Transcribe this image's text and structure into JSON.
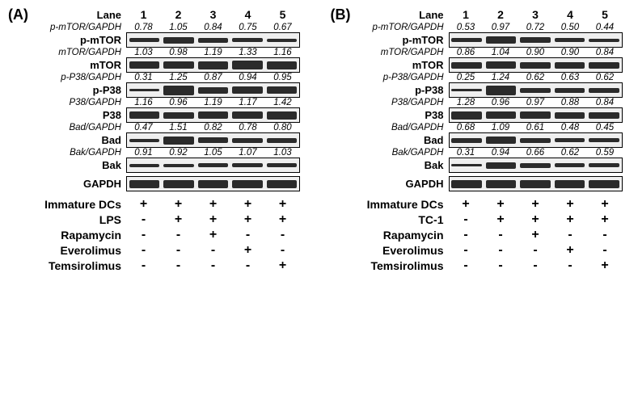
{
  "panels": {
    "A": {
      "letter": "(A)",
      "lane_header": "Lane",
      "lanes": [
        "1",
        "2",
        "3",
        "4",
        "5"
      ],
      "band_box_bg": "#efefef",
      "band_color": "#2b2b2b",
      "ratio_color": "#000000",
      "blocks": [
        {
          "ratio_label": "p-mTOR/GAPDH",
          "band_label": "p-mTOR",
          "values": [
            "0.78",
            "1.05",
            "0.84",
            "0.75",
            "0.67"
          ],
          "band_heights": [
            5,
            8,
            6,
            5,
            4
          ]
        },
        {
          "ratio_label": "mTOR/GAPDH",
          "band_label": "mTOR",
          "values": [
            "1.03",
            "0.98",
            "1.19",
            "1.33",
            "1.16"
          ],
          "band_heights": [
            9,
            9,
            10,
            11,
            10
          ]
        },
        {
          "ratio_label": "p-P38/GAPDH",
          "band_label": "p-P38",
          "values": [
            "0.31",
            "1.25",
            "0.87",
            "0.94",
            "0.95"
          ],
          "band_heights": [
            3,
            12,
            8,
            9,
            9
          ]
        },
        {
          "ratio_label": "P38/GAPDH",
          "band_label": "P38",
          "values": [
            "1.16",
            "0.96",
            "1.19",
            "1.17",
            "1.42"
          ],
          "band_heights": [
            9,
            8,
            9,
            9,
            10
          ]
        },
        {
          "ratio_label": "Bad/GAPDH",
          "band_label": "Bad",
          "values": [
            "0.47",
            "1.51",
            "0.82",
            "0.78",
            "0.80"
          ],
          "band_heights": [
            4,
            10,
            7,
            6,
            6
          ]
        },
        {
          "ratio_label": "Bak/GAPDH",
          "band_label": "Bak",
          "values": [
            "0.91",
            "0.92",
            "1.05",
            "1.07",
            "1.03"
          ],
          "band_heights": [
            4,
            4,
            5,
            5,
            5
          ]
        }
      ],
      "gapdh": {
        "label": "GAPDH",
        "band_heights": [
          10,
          10,
          10,
          10,
          10
        ]
      },
      "treatments": [
        {
          "name": "Immature DCs",
          "marks": [
            "+",
            "+",
            "+",
            "+",
            "+"
          ]
        },
        {
          "name": "LPS",
          "marks": [
            "-",
            "+",
            "+",
            "+",
            "+"
          ]
        },
        {
          "name": "Rapamycin",
          "marks": [
            "-",
            "-",
            "+",
            "-",
            "-"
          ]
        },
        {
          "name": "Everolimus",
          "marks": [
            "-",
            "-",
            "-",
            "+",
            "-"
          ]
        },
        {
          "name": "Temsirolimus",
          "marks": [
            "-",
            "-",
            "-",
            "-",
            "+"
          ]
        }
      ]
    },
    "B": {
      "letter": "(B)",
      "lane_header": "Lane",
      "lanes": [
        "1",
        "2",
        "3",
        "4",
        "5"
      ],
      "band_box_bg": "#efefef",
      "band_color": "#2b2b2b",
      "ratio_color": "#000000",
      "blocks": [
        {
          "ratio_label": "p-mTOR/GAPDH",
          "band_label": "p-mTOR",
          "values": [
            "0.53",
            "0.97",
            "0.72",
            "0.50",
            "0.44"
          ],
          "band_heights": [
            5,
            9,
            7,
            5,
            4
          ]
        },
        {
          "ratio_label": "mTOR/GAPDH",
          "band_label": "mTOR",
          "values": [
            "0.86",
            "1.04",
            "0.90",
            "0.90",
            "0.84"
          ],
          "band_heights": [
            8,
            9,
            8,
            8,
            8
          ]
        },
        {
          "ratio_label": "p-P38/GAPDH",
          "band_label": "p-P38",
          "values": [
            "0.25",
            "1.24",
            "0.62",
            "0.63",
            "0.62"
          ],
          "band_heights": [
            3,
            12,
            6,
            6,
            6
          ]
        },
        {
          "ratio_label": "P38/GAPDH",
          "band_label": "P38",
          "values": [
            "1.28",
            "0.96",
            "0.97",
            "0.88",
            "0.84"
          ],
          "band_heights": [
            10,
            9,
            9,
            8,
            8
          ]
        },
        {
          "ratio_label": "Bad/GAPDH",
          "band_label": "Bad",
          "values": [
            "0.68",
            "1.09",
            "0.61",
            "0.48",
            "0.45"
          ],
          "band_heights": [
            6,
            9,
            6,
            5,
            5
          ]
        },
        {
          "ratio_label": "Bak/GAPDH",
          "band_label": "Bak",
          "values": [
            "0.31",
            "0.94",
            "0.66",
            "0.62",
            "0.59"
          ],
          "band_heights": [
            3,
            8,
            6,
            5,
            5
          ]
        }
      ],
      "gapdh": {
        "label": "GAPDH",
        "band_heights": [
          10,
          10,
          10,
          10,
          10
        ]
      },
      "treatments": [
        {
          "name": "Immature DCs",
          "marks": [
            "+",
            "+",
            "+",
            "+",
            "+"
          ]
        },
        {
          "name": "TC-1",
          "marks": [
            "-",
            "+",
            "+",
            "+",
            "+"
          ]
        },
        {
          "name": "Rapamycin",
          "marks": [
            "-",
            "-",
            "+",
            "-",
            "-"
          ]
        },
        {
          "name": "Everolimus",
          "marks": [
            "-",
            "-",
            "-",
            "+",
            "-"
          ]
        },
        {
          "name": "Temsirolimus",
          "marks": [
            "-",
            "-",
            "-",
            "-",
            "+"
          ]
        }
      ]
    }
  }
}
